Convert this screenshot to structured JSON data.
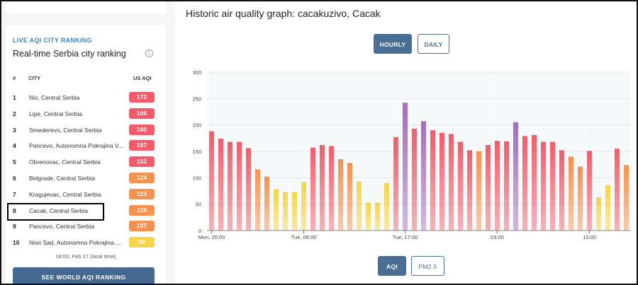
{
  "ranking": {
    "heading": "LIVE AQI CITY RANKING",
    "title": "Real-time Serbia city ranking",
    "info_icon": "info-icon",
    "columns": {
      "num": "#",
      "city": "CITY",
      "aqi": "US AQI"
    },
    "rows": [
      {
        "rank": "1",
        "city": "Nis, Central Serbia",
        "aqi": "172",
        "color": "#f25c6a"
      },
      {
        "rank": "2",
        "city": "Lipe, Central Serbia",
        "aqi": "166",
        "color": "#f25c6a"
      },
      {
        "rank": "3",
        "city": "Smederevo, Central Serbia",
        "aqi": "160",
        "color": "#f25c6a"
      },
      {
        "rank": "4",
        "city": "Pancevo, Autonomna Pokrajina V...",
        "aqi": "157",
        "color": "#f25c6a"
      },
      {
        "rank": "5",
        "city": "Obrenovac, Central Serbia",
        "aqi": "152",
        "color": "#f25c6a"
      },
      {
        "rank": "6",
        "city": "Belgrade, Central Serbia",
        "aqi": "124",
        "color": "#f6914f"
      },
      {
        "rank": "7",
        "city": "Kragujevac, Central Serbia",
        "aqi": "123",
        "color": "#f6914f"
      },
      {
        "rank": "8",
        "city": "Cacak, Central Serbia",
        "aqi": "118",
        "color": "#f6914f"
      },
      {
        "rank": "9",
        "city": "Pancevo, Central Serbia",
        "aqi": "107",
        "color": "#f6914f"
      },
      {
        "rank": "10",
        "city": "Novi Sad, Autonomna Pokrajina ...",
        "aqi": "94",
        "color": "#f5d54a"
      }
    ],
    "highlighted_rank": "8",
    "update_time": "18:00, Feb 17 (local time)",
    "world_button": "SEE WORLD AQI RANKING"
  },
  "graph": {
    "title": "Historic air quality graph: cacakuzivo, Cacak",
    "tabs": {
      "hourly": "HOURLY",
      "daily": "DAILY",
      "active": "HOURLY"
    },
    "metric_tabs": {
      "aqi": "AQI",
      "pm25": "PM2.5",
      "active": "AQI"
    }
  },
  "chart_data": {
    "type": "bar",
    "title": "",
    "xlabel": "",
    "ylabel": "",
    "ylim": [
      0,
      300
    ],
    "yticks": [
      0,
      50,
      100,
      150,
      200,
      250,
      300
    ],
    "x_tick_labels": [
      "Mon, 20:00",
      "Tue, 06:00",
      "Tue, 17:00",
      "03:00",
      "13:00"
    ],
    "x_tick_indices": [
      0,
      10,
      21,
      31,
      41
    ],
    "grid": true,
    "values": [
      188,
      174,
      168,
      168,
      156,
      116,
      102,
      78,
      73,
      73,
      92,
      157,
      162,
      160,
      135,
      128,
      93,
      53,
      53,
      90,
      177,
      242,
      193,
      207,
      190,
      185,
      183,
      168,
      152,
      150,
      162,
      170,
      169,
      205,
      179,
      181,
      168,
      168,
      152,
      140,
      121,
      151,
      63,
      86,
      155,
      124
    ],
    "level_colors": {
      "good": "#9cd84e",
      "moderate": "#f5d54a",
      "sensitive": "#f6914f",
      "unhealthy": "#f25c6a",
      "very_unhealthy": "#a070b6"
    }
  }
}
